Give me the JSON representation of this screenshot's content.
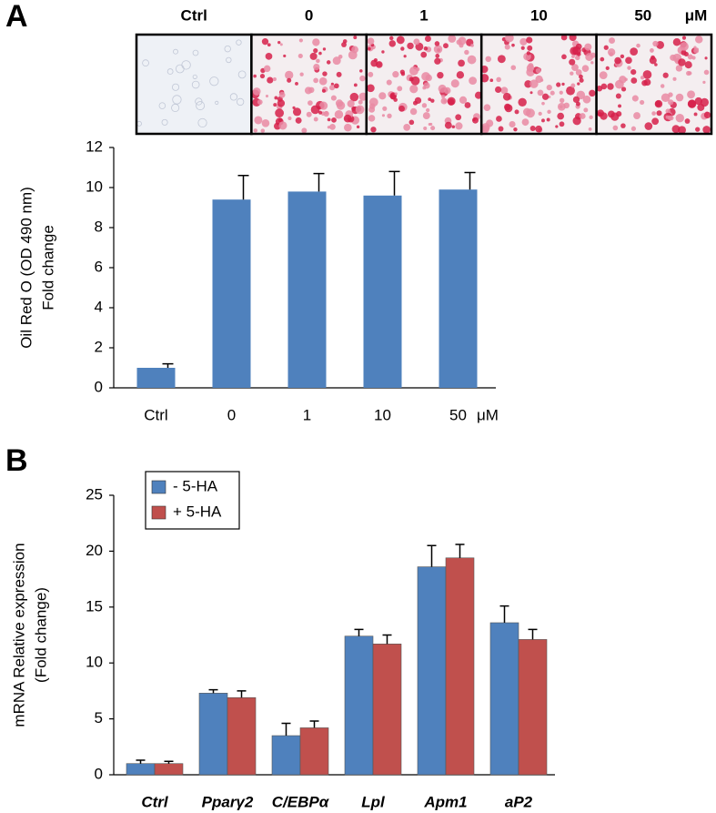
{
  "panel_labels": [
    "A",
    "B"
  ],
  "image_strip": {
    "labels": [
      "Ctrl",
      "0",
      "1",
      "10",
      "50"
    ],
    "unit": "μM"
  },
  "chart_data": [
    {
      "type": "bar",
      "y_label": [
        "Oil Red O (OD 490 nm)",
        "Fold change"
      ],
      "categories": [
        "Ctrl",
        "0",
        "1",
        "10",
        "50"
      ],
      "x_unit": "μM",
      "values": [
        1.0,
        9.4,
        9.8,
        9.6,
        9.9
      ],
      "errors": [
        0.2,
        1.2,
        0.9,
        1.2,
        0.85
      ],
      "color": "#4f81bd",
      "ylim": [
        0,
        12
      ],
      "yticks": [
        0,
        2,
        4,
        6,
        8,
        10,
        12
      ]
    },
    {
      "type": "grouped-bar",
      "y_label": [
        "mRNA Relative expression",
        "(Fold change)"
      ],
      "categories": [
        "Ctrl",
        "Pparγ2",
        "C/EBPα",
        "Lpl",
        "Apm1",
        "aP2"
      ],
      "series": [
        {
          "name": "- 5-HA",
          "color": "#4f81bd",
          "values": [
            1.0,
            7.3,
            3.5,
            12.4,
            18.6,
            13.6
          ],
          "errors": [
            0.3,
            0.3,
            1.1,
            0.6,
            1.9,
            1.5
          ]
        },
        {
          "name": "+ 5-HA",
          "color": "#c0504d",
          "values": [
            1.0,
            6.9,
            4.2,
            11.7,
            19.4,
            12.1
          ],
          "errors": [
            0.2,
            0.6,
            0.6,
            0.8,
            1.2,
            0.9
          ]
        }
      ],
      "legend": "top-left",
      "ylim": [
        0,
        25
      ],
      "yticks": [
        0,
        5,
        10,
        15,
        20,
        25
      ]
    }
  ]
}
